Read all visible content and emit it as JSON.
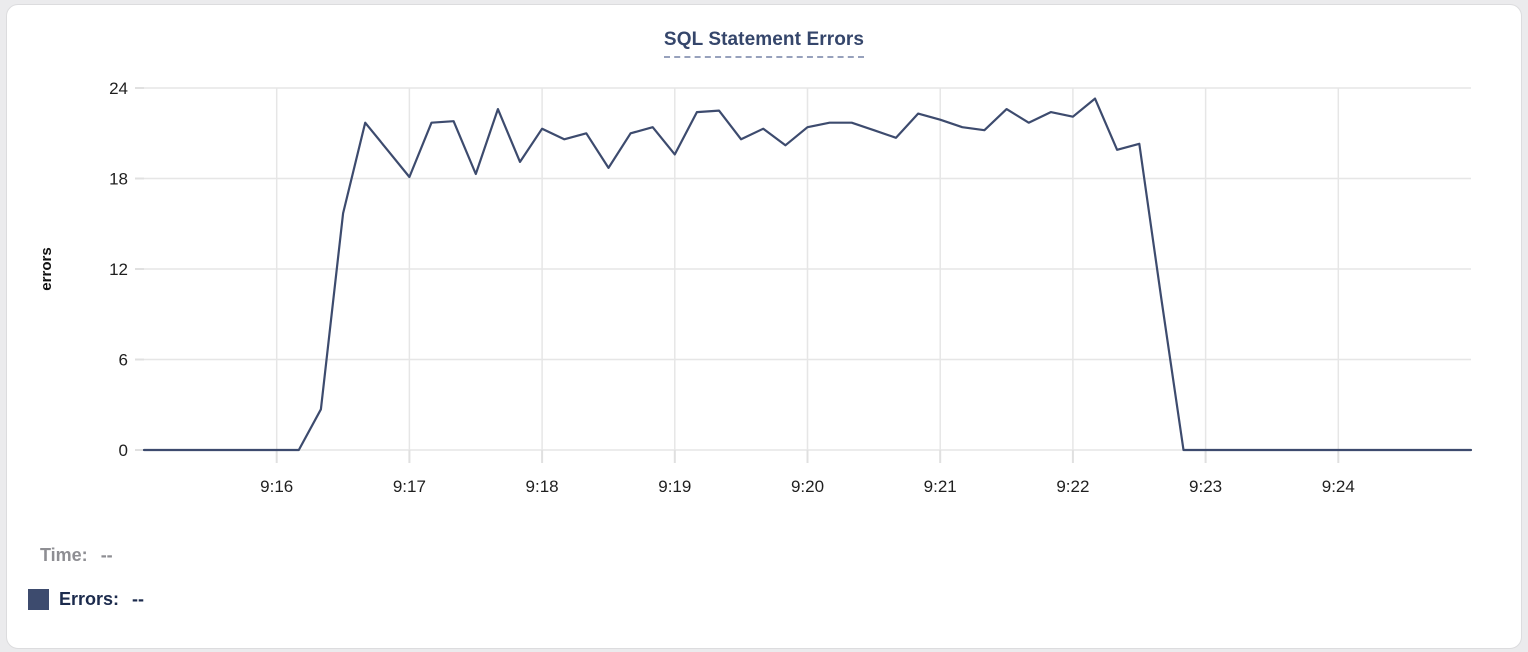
{
  "chart_data": {
    "type": "line",
    "title": "SQL Statement Errors",
    "ylabel": "errors",
    "xlabel": "",
    "x_start": "9:15:00",
    "x_end": "9:25:00",
    "point_interval_seconds": 10,
    "x_axis_ticks": [
      "9:16",
      "9:17",
      "9:18",
      "9:19",
      "9:20",
      "9:21",
      "9:22",
      "9:23",
      "9:24"
    ],
    "y_ticks": [
      0,
      6,
      12,
      18,
      24
    ],
    "ylim": [
      0,
      24
    ],
    "grid": true,
    "legend_position": "bottom-left",
    "series": [
      {
        "name": "Errors",
        "color": "#3d4b6e",
        "values": [
          0,
          0,
          0,
          0,
          0,
          0,
          0,
          0,
          2.7,
          15.7,
          21.7,
          19.9,
          18.1,
          21.7,
          21.8,
          18.3,
          22.6,
          19.1,
          21.3,
          20.6,
          21,
          18.7,
          21,
          21.4,
          19.6,
          22.4,
          22.5,
          20.6,
          21.3,
          20.2,
          21.4,
          21.7,
          21.7,
          21.2,
          20.7,
          22.3,
          21.9,
          21.4,
          21.2,
          22.6,
          21.7,
          22.4,
          22.1,
          23.3,
          19.9,
          20.3,
          10,
          0,
          0,
          0,
          0,
          0,
          0,
          0,
          0,
          0,
          0,
          0,
          0,
          0,
          0
        ]
      }
    ]
  },
  "tooltip": {
    "time_label": "Time:",
    "time_value": "--",
    "errors_label": "Errors:",
    "errors_value": "--"
  },
  "colors": {
    "line": "#3d4b6e",
    "grid": "#e6e6e6",
    "tick_stub": "#e0e0e0",
    "tick_text": "#1f1f1f",
    "axis_label_text": "#111111",
    "title": "#35466b",
    "title_underline": "#97a1bc",
    "time_text": "#8e8e93",
    "errors_text": "#1c2b4d"
  }
}
